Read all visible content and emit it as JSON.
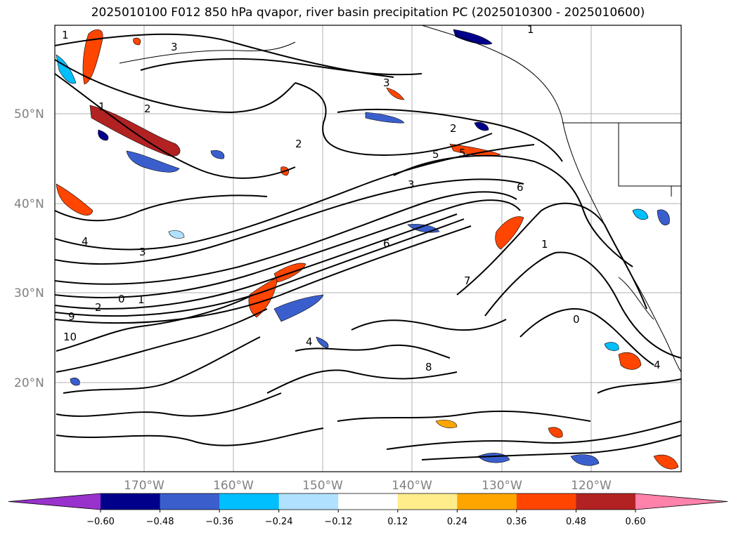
{
  "title": "2025010100 F012 850 hPa qvapor, river basin precipitation PC (2025010300 - 2025010600)",
  "lat_labels": [
    "50°N",
    "40°N",
    "30°N",
    "20°N"
  ],
  "lon_labels": [
    "170°W",
    "160°W",
    "150°W",
    "140°W",
    "130°W",
    "120°W"
  ],
  "colorbar": {
    "ticks": [
      "−0.60",
      "−0.48",
      "−0.36",
      "−0.24",
      "−0.12",
      "0.12",
      "0.24",
      "0.36",
      "0.48",
      "0.60"
    ],
    "colors": [
      "#9932cc",
      "#00008b",
      "#3a5fcd",
      "#00bfff",
      "#b0e2ff",
      "#ffffff",
      "#ffec8b",
      "#ffa500",
      "#ff4500",
      "#b22222",
      "#ff82ab"
    ]
  },
  "contour_labels": [
    "1",
    "2",
    "3",
    "4",
    "5",
    "6",
    "7",
    "8",
    "9",
    "10",
    "0",
    "3",
    "2",
    "1",
    "4",
    "1",
    "3",
    "2",
    "6",
    "5",
    "1",
    "0",
    "3",
    "4",
    "2",
    "1"
  ]
}
